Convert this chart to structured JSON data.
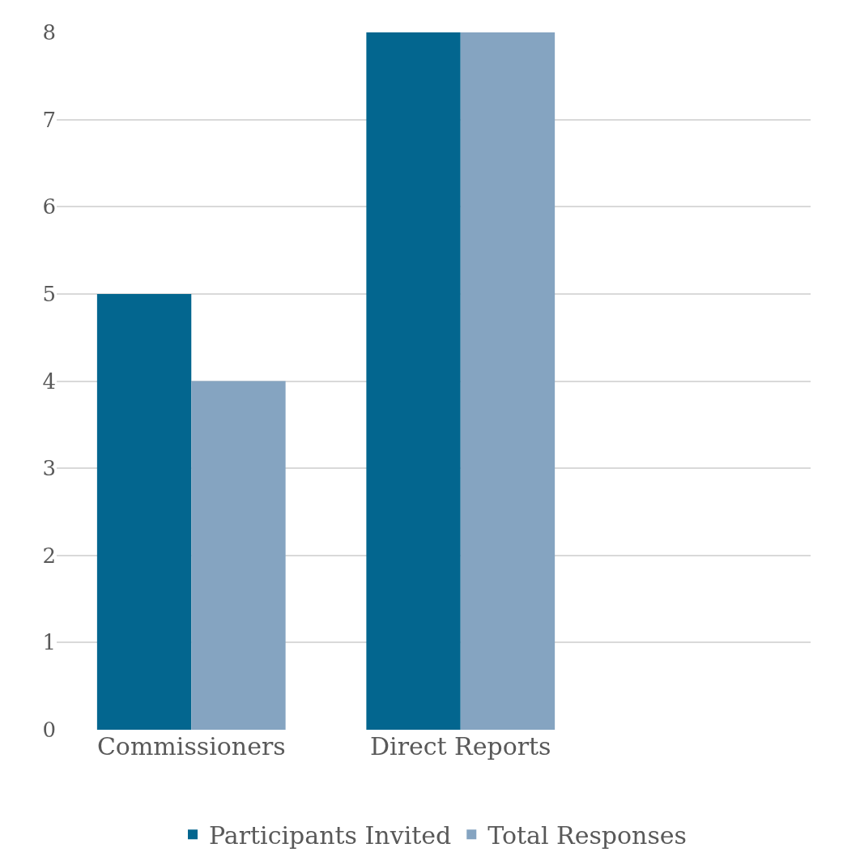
{
  "chart_data": {
    "type": "bar",
    "categories": [
      "Commissioners",
      "Direct Reports"
    ],
    "series": [
      {
        "name": "Participants Invited",
        "color": "#03668f",
        "values": [
          5,
          8
        ]
      },
      {
        "name": "Total Responses",
        "color": "#85a4c1",
        "values": [
          4,
          8
        ]
      }
    ],
    "ylim": [
      0,
      8
    ],
    "yticks": [
      0,
      1,
      2,
      3,
      4,
      5,
      6,
      7,
      8
    ],
    "grid": "y",
    "legend": "bottom"
  }
}
